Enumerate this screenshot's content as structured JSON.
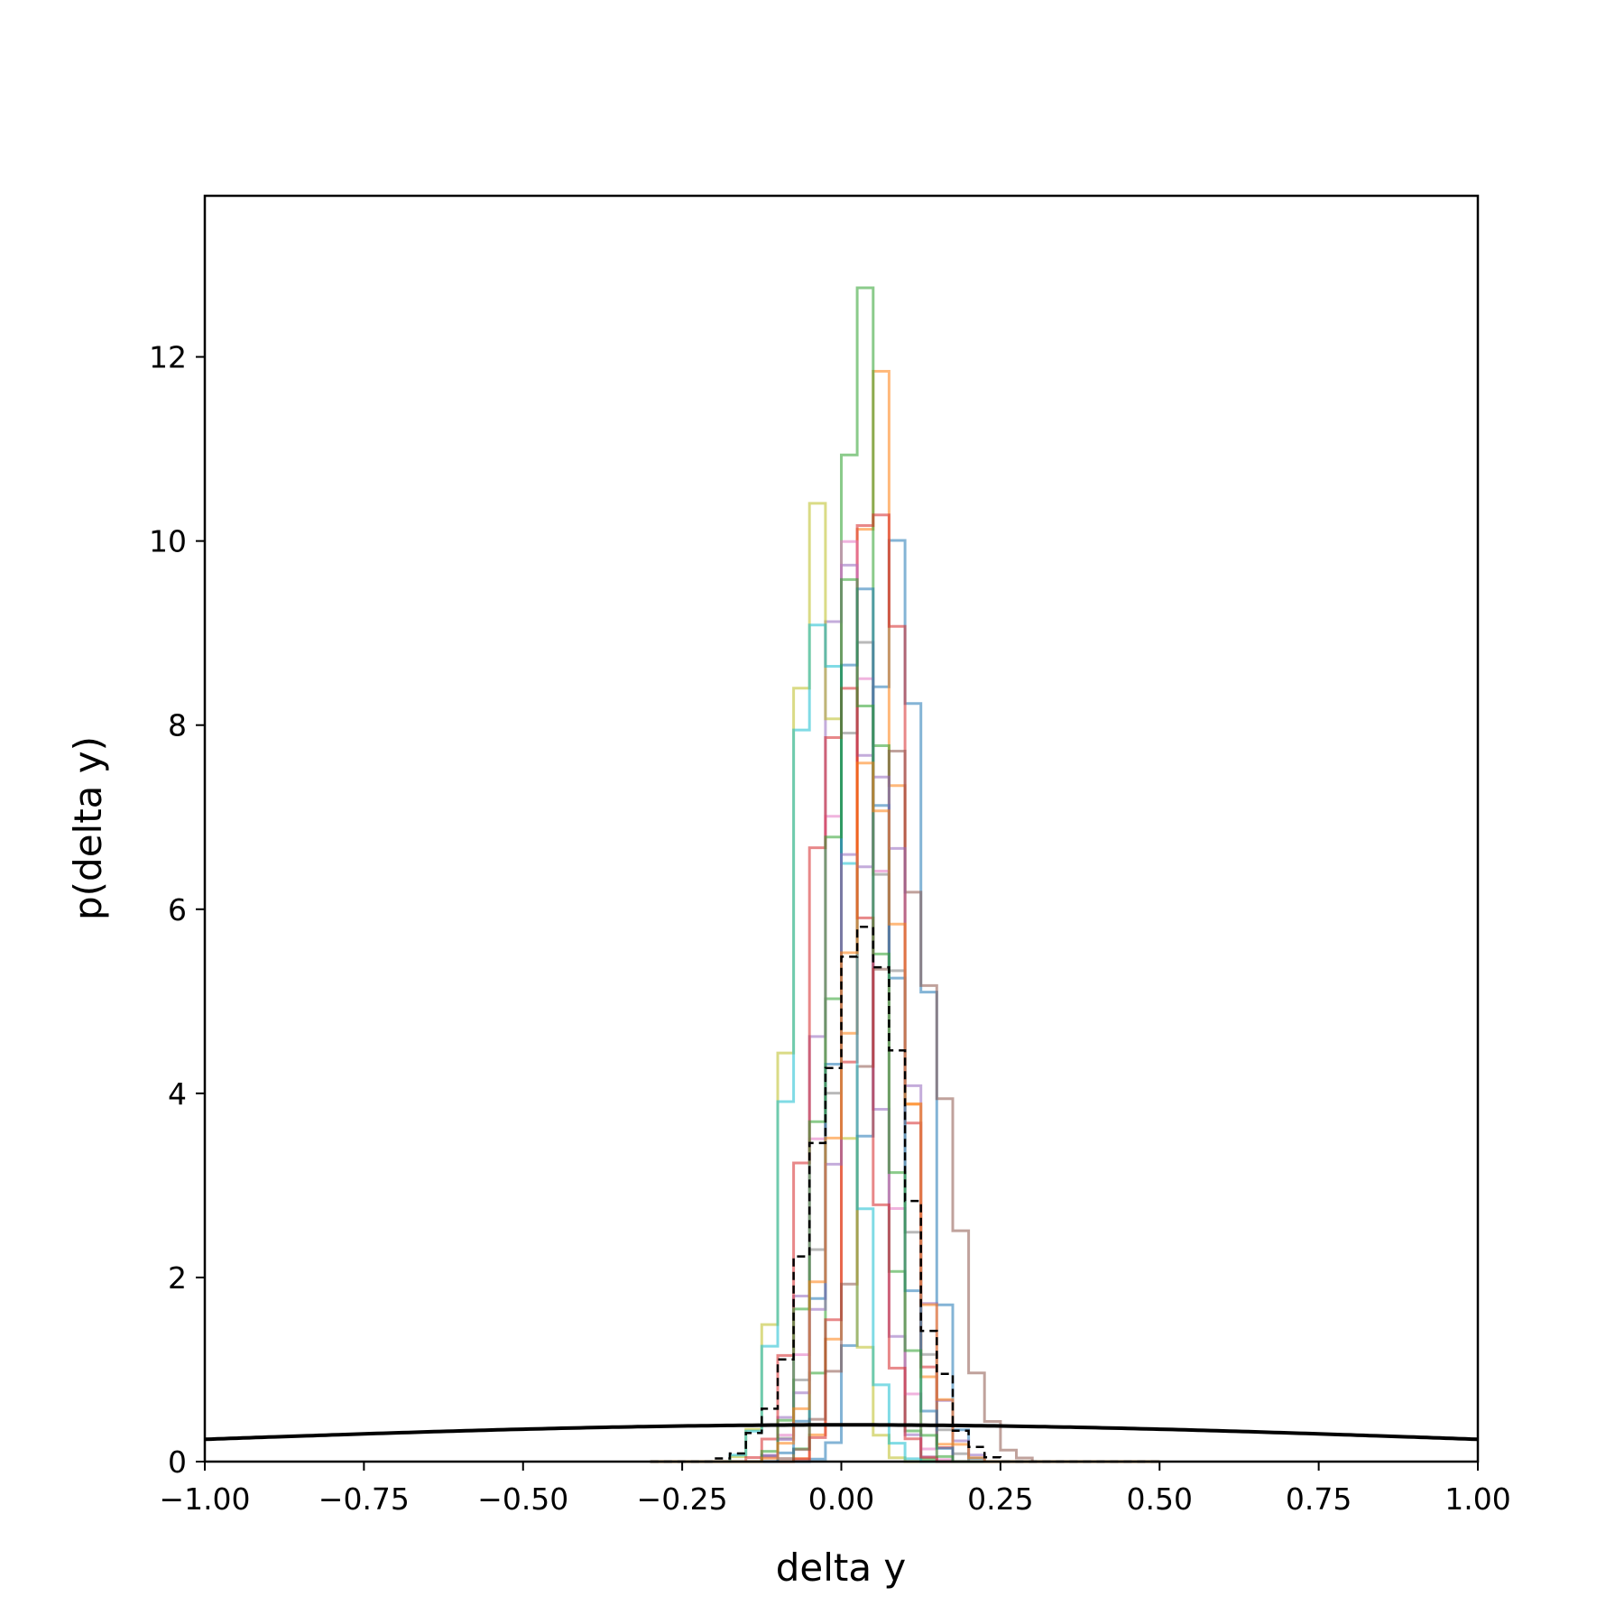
{
  "chart_data": {
    "type": "line",
    "title": "",
    "xlabel": "delta y",
    "ylabel": "p(delta y)",
    "xlim": [
      -1.0,
      1.0
    ],
    "ylim": [
      0,
      13.75
    ],
    "xticks": [
      -1.0,
      -0.75,
      -0.5,
      -0.25,
      0.0,
      0.25,
      0.5,
      0.75,
      1.0
    ],
    "xtick_labels": [
      "−1.00",
      "−0.75",
      "−0.50",
      "−0.25",
      "0.00",
      "0.25",
      "0.50",
      "0.75",
      "1.00"
    ],
    "yticks": [
      0,
      2,
      4,
      6,
      8,
      10,
      12
    ],
    "ytick_labels": [
      "0",
      "2",
      "4",
      "6",
      "8",
      "10",
      "12"
    ],
    "grid": false,
    "legend": "none",
    "prior_curve": {
      "kind": "normal-pdf",
      "mean": 0.0,
      "std": 1.0,
      "color": "#000000",
      "style": "solid"
    },
    "step_histograms": [
      {
        "color": "#1f77b4",
        "style": "solid",
        "alpha": 0.55,
        "mean": 0.09,
        "peak": 10.9
      },
      {
        "color": "#ff7f0e",
        "style": "solid",
        "alpha": 0.55,
        "mean": 0.06,
        "peak": 11.2
      },
      {
        "color": "#2ca02c",
        "style": "solid",
        "alpha": 0.55,
        "mean": 0.03,
        "peak": 13.1
      },
      {
        "color": "#d62728",
        "style": "solid",
        "alpha": 0.55,
        "mean": 0.06,
        "peak": 11.2
      },
      {
        "color": "#9467bd",
        "style": "solid",
        "alpha": 0.55,
        "mean": 0.01,
        "peak": 10.2
      },
      {
        "color": "#8c564b",
        "style": "solid",
        "alpha": 0.55,
        "mean": 0.1,
        "peak": 6.9
      },
      {
        "color": "#e377c2",
        "style": "solid",
        "alpha": 0.55,
        "mean": 0.02,
        "peak": 9.9
      },
      {
        "color": "#7f7f7f",
        "style": "solid",
        "alpha": 0.55,
        "mean": 0.04,
        "peak": 8.3
      },
      {
        "color": "#bcbd22",
        "style": "solid",
        "alpha": 0.55,
        "mean": -0.04,
        "peak": 10.5
      },
      {
        "color": "#17becf",
        "style": "solid",
        "alpha": 0.55,
        "mean": -0.03,
        "peak": 9.5
      },
      {
        "color": "#1f77b4",
        "style": "solid",
        "alpha": 0.55,
        "mean": 0.04,
        "peak": 9.6
      },
      {
        "color": "#d62728",
        "style": "solid",
        "alpha": 0.55,
        "mean": 0.0,
        "peak": 9.4
      },
      {
        "color": "#9467bd",
        "style": "solid",
        "alpha": 0.55,
        "mean": 0.05,
        "peak": 7.6
      },
      {
        "color": "#2ca02c",
        "style": "solid",
        "alpha": 0.55,
        "mean": 0.02,
        "peak": 8.9
      },
      {
        "color": "#ff7f0e",
        "style": "solid",
        "alpha": 0.55,
        "mean": 0.05,
        "peak": 8.0
      },
      {
        "color": "#000000",
        "style": "dashed",
        "alpha": 1.0,
        "mean": 0.03,
        "peak": 5.9
      }
    ]
  }
}
